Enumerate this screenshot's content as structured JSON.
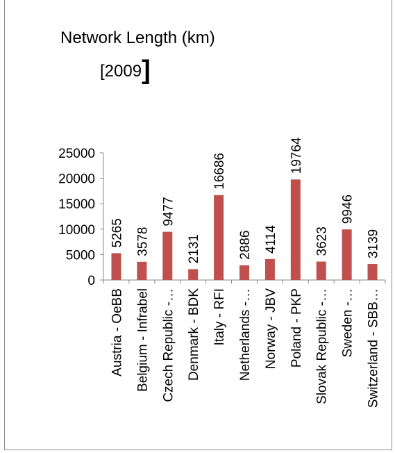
{
  "chart_data": {
    "type": "bar",
    "title": "Network Length (km)",
    "subtitle": "[2009",
    "subtitle_bracket": "]",
    "categories": [
      "Austria - OeBB",
      "Belgium - Infrabel",
      "Czech Republic -…",
      "Denmark - BDK",
      "Italy - RFI",
      "Netherlands -…",
      "Norway - JBV",
      "Poland - PKP",
      "Slovak Republic -…",
      "Sweden -…",
      "Switzerland - SBB…"
    ],
    "values": [
      5265,
      3578,
      9477,
      2131,
      16686,
      2886,
      4114,
      19764,
      3623,
      9946,
      3139
    ],
    "ylim": [
      0,
      25000
    ],
    "yticks": [
      0,
      5000,
      10000,
      15000,
      20000,
      25000
    ],
    "grid": false,
    "legend": "none",
    "bar_color": "#c0504d",
    "axis_color": "#868686"
  }
}
